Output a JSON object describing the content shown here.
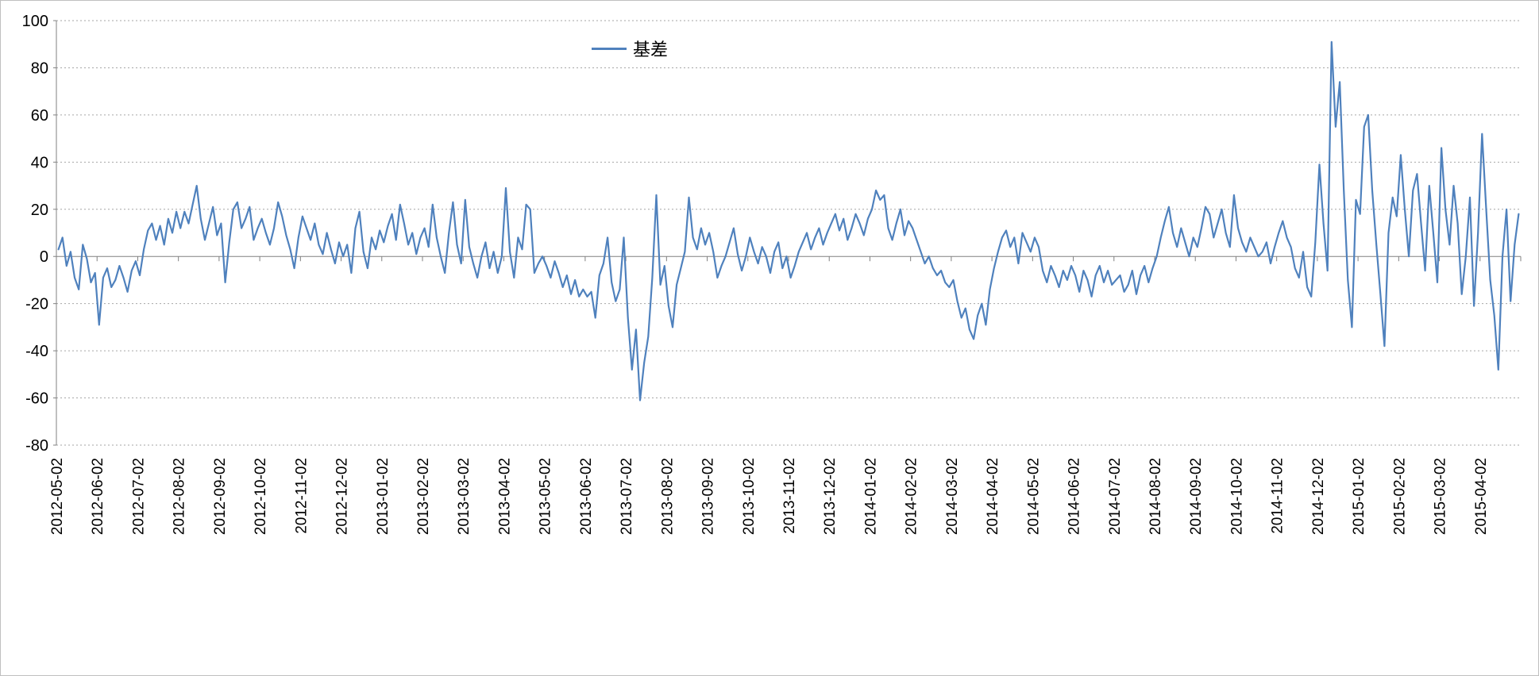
{
  "chart_data": {
    "type": "line",
    "title": "",
    "series_name": "基差",
    "legend_position": "top-center",
    "grid": "horizontal-dotted",
    "ylim": [
      -80,
      100
    ],
    "ytick_step": 20,
    "line_color": "#4F81BD",
    "grid_color": "#a6a6a6",
    "axis_color": "#808080",
    "text_color": "#000000",
    "x_labels": [
      "2012-05-02",
      "2012-06-02",
      "2012-07-02",
      "2012-08-02",
      "2012-09-02",
      "2012-10-02",
      "2012-11-02",
      "2012-12-02",
      "2013-01-02",
      "2013-02-02",
      "2013-03-02",
      "2013-04-02",
      "2013-05-02",
      "2013-06-02",
      "2013-07-02",
      "2013-08-02",
      "2013-09-02",
      "2013-10-02",
      "2013-11-02",
      "2013-12-02",
      "2014-01-02",
      "2014-02-02",
      "2014-03-02",
      "2014-04-02",
      "2014-05-02",
      "2014-06-02",
      "2014-07-02",
      "2014-08-02",
      "2014-09-02",
      "2014-10-02",
      "2014-11-02",
      "2014-12-02",
      "2015-01-02",
      "2015-02-02",
      "2015-03-02",
      "2015-04-02"
    ],
    "values": [
      3,
      8,
      -4,
      2,
      -9,
      -14,
      5,
      -1,
      -11,
      -7,
      -29,
      -9,
      -5,
      -13,
      -10,
      -4,
      -9,
      -15,
      -6,
      -2,
      -8,
      3,
      11,
      14,
      7,
      13,
      5,
      16,
      10,
      19,
      12,
      19,
      14,
      22,
      30,
      16,
      7,
      14,
      21,
      9,
      14,
      -11,
      6,
      20,
      23,
      12,
      16,
      21,
      7,
      12,
      16,
      10,
      5,
      12,
      23,
      17,
      9,
      3,
      -5,
      8,
      17,
      12,
      7,
      14,
      5,
      1,
      10,
      3,
      -3,
      6,
      0,
      5,
      -7,
      12,
      19,
      2,
      -5,
      8,
      3,
      11,
      6,
      13,
      18,
      7,
      22,
      14,
      5,
      10,
      1,
      8,
      12,
      4,
      22,
      8,
      0,
      -7,
      10,
      23,
      5,
      -3,
      24,
      4,
      -3,
      -9,
      0,
      6,
      -5,
      2,
      -7,
      0,
      29,
      2,
      -9,
      8,
      3,
      22,
      20,
      -7,
      -3,
      0,
      -4,
      -9,
      -2,
      -7,
      -13,
      -8,
      -16,
      -10,
      -17,
      -14,
      -17,
      -15,
      -26,
      -8,
      -3,
      8,
      -11,
      -19,
      -14,
      8,
      -26,
      -48,
      -31,
      -61,
      -45,
      -34,
      -9,
      26,
      -12,
      -4,
      -21,
      -30,
      -12,
      -5,
      2,
      25,
      8,
      3,
      12,
      5,
      10,
      2,
      -9,
      -4,
      0,
      6,
      12,
      1,
      -6,
      0,
      8,
      2,
      -3,
      4,
      0,
      -7,
      2,
      6,
      -5,
      0,
      -9,
      -4,
      2,
      6,
      10,
      3,
      8,
      12,
      5,
      10,
      14,
      18,
      11,
      16,
      7,
      12,
      18,
      14,
      9,
      16,
      20,
      28,
      24,
      26,
      12,
      7,
      14,
      20,
      9,
      15,
      12,
      7,
      2,
      -3,
      0,
      -5,
      -8,
      -6,
      -11,
      -13,
      -10,
      -19,
      -26,
      -22,
      -31,
      -35,
      -25,
      -20,
      -29,
      -14,
      -5,
      2,
      8,
      11,
      4,
      8,
      -3,
      10,
      6,
      2,
      8,
      4,
      -6,
      -11,
      -4,
      -8,
      -13,
      -6,
      -10,
      -4,
      -8,
      -15,
      -6,
      -10,
      -17,
      -8,
      -4,
      -11,
      -6,
      -12,
      -10,
      -8,
      -15,
      -12,
      -6,
      -16,
      -8,
      -4,
      -11,
      -5,
      0,
      8,
      15,
      21,
      10,
      4,
      12,
      6,
      0,
      8,
      4,
      12,
      21,
      18,
      8,
      14,
      20,
      10,
      4,
      26,
      12,
      6,
      2,
      8,
      4,
      0,
      2,
      6,
      -3,
      4,
      10,
      15,
      8,
      4,
      -5,
      -9,
      2,
      -13,
      -17,
      6,
      39,
      14,
      -6,
      91,
      55,
      74,
      28,
      -10,
      -30,
      24,
      18,
      55,
      60,
      28,
      5,
      -16,
      -38,
      10,
      25,
      17,
      43,
      20,
      0,
      28,
      35,
      14,
      -6,
      30,
      10,
      -11,
      46,
      20,
      5,
      30,
      14,
      -16,
      0,
      25,
      -21,
      10,
      52,
      20,
      -10,
      -25,
      -48,
      0,
      20,
      -19,
      5,
      18
    ],
    "ytick_labels": [
      "100",
      "80",
      "60",
      "40",
      "20",
      "0",
      "-20",
      "-40",
      "-60",
      "-80"
    ]
  }
}
